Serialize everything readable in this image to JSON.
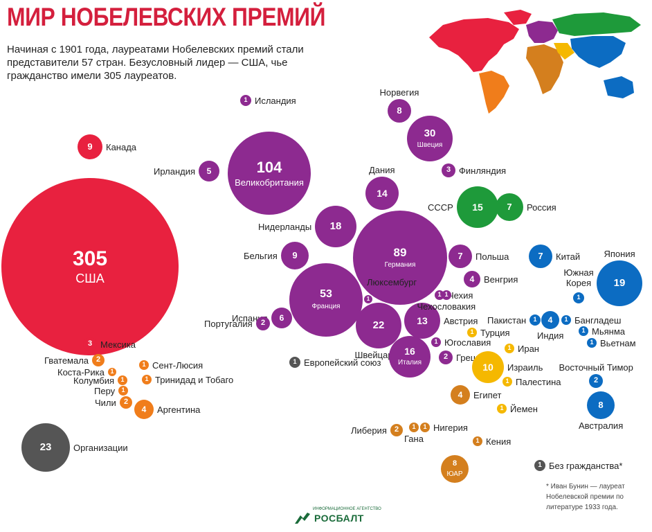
{
  "header": {
    "title": "МИР НОБЕЛЕВСКИХ ПРЕМИЙ",
    "subtitle": "Начиная с 1901 года, лауреатами Нобелевских премий стали представители 57 стран.  Безусловный лидер — США, чье гражданство имели 305 лауреатов."
  },
  "colors": {
    "title": "#d41f3d",
    "america": "#e8213f",
    "latin_america": "#f07d1b",
    "europe": "#8d2a90",
    "russia": "#1e9a3a",
    "asia_pacific": "#0c6cc2",
    "middle_east": "#f5b800",
    "africa": "#d47f1e",
    "other": "#555555"
  },
  "bubbles": [
    {
      "id": "usa",
      "value": "305",
      "country": "США",
      "region": "america"
    },
    {
      "id": "canada",
      "value": "9",
      "label": "Канада",
      "region": "america"
    },
    {
      "id": "mexico",
      "value": "3",
      "label": "Мексика",
      "region": "america"
    },
    {
      "id": "guatemala",
      "value": "2",
      "label": "Гватемала",
      "region": "latin_america"
    },
    {
      "id": "costa-rica",
      "value": "1",
      "label": "Коста-Рика",
      "region": "latin_america"
    },
    {
      "id": "colombia",
      "value": "1",
      "label": "Колумбия",
      "region": "latin_america"
    },
    {
      "id": "peru",
      "value": "1",
      "label": "Перу",
      "region": "latin_america"
    },
    {
      "id": "chile",
      "value": "2",
      "label": "Чили",
      "region": "latin_america"
    },
    {
      "id": "saint-lucia",
      "value": "1",
      "label": "Сент-Люсия",
      "region": "latin_america"
    },
    {
      "id": "trinidad",
      "value": "1",
      "label": "Тринидад и Тобаго",
      "region": "latin_america"
    },
    {
      "id": "argentina",
      "value": "4",
      "label": "Аргентина",
      "region": "latin_america"
    },
    {
      "id": "organizations",
      "value": "23",
      "label": "Организации",
      "region": "other"
    },
    {
      "id": "iceland",
      "value": "1",
      "label": "Исландия",
      "region": "europe"
    },
    {
      "id": "uk",
      "value": "104",
      "country": "Великобритания",
      "region": "europe"
    },
    {
      "id": "ireland",
      "value": "5",
      "label": "Ирландия",
      "region": "europe"
    },
    {
      "id": "norway",
      "value": "8",
      "label": "Норвегия",
      "region": "europe"
    },
    {
      "id": "sweden",
      "value": "30",
      "country": "Швеция",
      "region": "europe"
    },
    {
      "id": "finland",
      "value": "3",
      "label": "Финляндия",
      "region": "europe"
    },
    {
      "id": "denmark",
      "value": "14",
      "label": "Дания",
      "region": "europe"
    },
    {
      "id": "netherlands",
      "value": "18",
      "label": "Нидерланды",
      "region": "europe"
    },
    {
      "id": "germany",
      "value": "89",
      "country": "Германия",
      "region": "europe"
    },
    {
      "id": "belgium",
      "value": "9",
      "label": "Бельгия",
      "region": "europe"
    },
    {
      "id": "france",
      "value": "53",
      "country": "Франция",
      "region": "europe"
    },
    {
      "id": "luxembourg",
      "value": "1",
      "label": "Люксембург",
      "region": "europe"
    },
    {
      "id": "spain",
      "value": "6",
      "label": "Испания",
      "region": "europe"
    },
    {
      "id": "portugal",
      "value": "2",
      "label": "Португалия",
      "region": "europe"
    },
    {
      "id": "switzerland",
      "value": "22",
      "label": "Швейцария",
      "region": "europe"
    },
    {
      "id": "austria",
      "value": "13",
      "label": "Австрия",
      "region": "europe"
    },
    {
      "id": "italy",
      "value": "16",
      "country": "Италия",
      "region": "europe"
    },
    {
      "id": "greece",
      "value": "2",
      "label": "Греция",
      "region": "europe"
    },
    {
      "id": "yugoslavia",
      "value": "1",
      "label": "Югославия",
      "region": "europe"
    },
    {
      "id": "eu",
      "value": "1",
      "label": "Европейский союз",
      "region": "other"
    },
    {
      "id": "poland",
      "value": "7",
      "label": "Польша",
      "region": "europe"
    },
    {
      "id": "hungary",
      "value": "4",
      "label": "Венгрия",
      "region": "europe"
    },
    {
      "id": "czech",
      "value": "1",
      "label": "Чехия",
      "region": "europe"
    },
    {
      "id": "czechoslovakia",
      "value": "1",
      "label": "Чехословакия",
      "region": "europe"
    },
    {
      "id": "ussr",
      "value": "15",
      "label": "СССР",
      "region": "russia"
    },
    {
      "id": "russia",
      "value": "7",
      "label": "Россия",
      "region": "russia"
    },
    {
      "id": "china",
      "value": "7",
      "label": "Китай",
      "region": "asia_pacific"
    },
    {
      "id": "japan",
      "value": "19",
      "label": "Япония",
      "region": "asia_pacific"
    },
    {
      "id": "south-korea",
      "value": "1",
      "label": "Южная Корея",
      "region": "asia_pacific"
    },
    {
      "id": "pakistan",
      "value": "1",
      "label": "Пакистан",
      "region": "asia_pacific"
    },
    {
      "id": "india",
      "value": "4",
      "label": "Индия",
      "region": "asia_pacific"
    },
    {
      "id": "bangladesh",
      "value": "1",
      "label": "Бангладеш",
      "region": "asia_pacific"
    },
    {
      "id": "myanmar",
      "value": "1",
      "label": "Мьянма",
      "region": "asia_pacific"
    },
    {
      "id": "vietnam",
      "value": "1",
      "label": "Вьетнам",
      "region": "asia_pacific"
    },
    {
      "id": "east-timor",
      "value": "2",
      "label": "Восточный Тимор",
      "region": "asia_pacific"
    },
    {
      "id": "australia",
      "value": "8",
      "label": "Австралия",
      "region": "asia_pacific"
    },
    {
      "id": "turkey",
      "value": "1",
      "label": "Турция",
      "region": "middle_east"
    },
    {
      "id": "iran",
      "value": "1",
      "label": "Иран",
      "region": "middle_east"
    },
    {
      "id": "israel",
      "value": "10",
      "label": "Израиль",
      "region": "middle_east"
    },
    {
      "id": "palestine",
      "value": "1",
      "label": "Палестина",
      "region": "middle_east"
    },
    {
      "id": "yemen",
      "value": "1",
      "label": "Йемен",
      "region": "middle_east"
    },
    {
      "id": "egypt",
      "value": "4",
      "label": "Египет",
      "region": "africa"
    },
    {
      "id": "liberia",
      "value": "2",
      "label": "Либерия",
      "region": "africa"
    },
    {
      "id": "ghana",
      "value": "1",
      "label": "Гана",
      "region": "africa"
    },
    {
      "id": "nigeria",
      "value": "1",
      "label": "Нигерия",
      "region": "africa"
    },
    {
      "id": "kenya",
      "value": "1",
      "label": "Кения",
      "region": "africa"
    },
    {
      "id": "south-africa",
      "value": "8",
      "country": "ЮАР",
      "region": "africa"
    }
  ],
  "legend": {
    "stateless_value": "1",
    "stateless_label": "Без гражданства*"
  },
  "footnote": "* Иван Бунин — лауреат Нобелевской премии по литературе 1933 года.",
  "logo": {
    "name": "РОСБАЛТ",
    "tagline": "ИНФОРМАЦИОННОЕ АГЕНТСТВО"
  }
}
